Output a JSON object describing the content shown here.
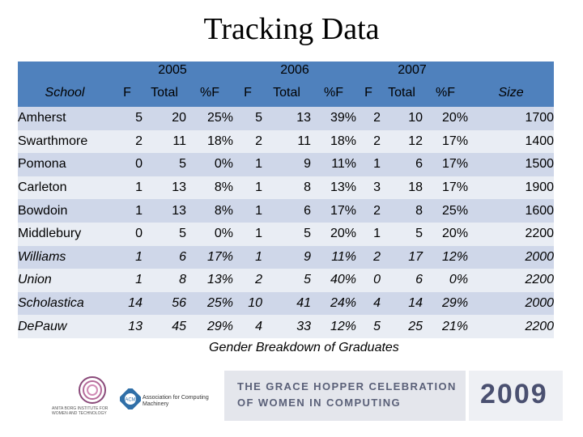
{
  "title": "Tracking Data",
  "table": {
    "years": [
      "2005",
      "2006",
      "2007"
    ],
    "school_label": "School",
    "size_label": "Size",
    "col_labels": [
      "F",
      "Total",
      "%F"
    ],
    "rows": [
      {
        "school": "Amherst",
        "y2005": [
          "5",
          "20",
          "25%"
        ],
        "y2006": [
          "5",
          "13",
          "39%"
        ],
        "y2007": [
          "2",
          "10",
          "20%"
        ],
        "size": "1700"
      },
      {
        "school": "Swarthmore",
        "y2005": [
          "2",
          "11",
          "18%"
        ],
        "y2006": [
          "2",
          "11",
          "18%"
        ],
        "y2007": [
          "2",
          "12",
          "17%"
        ],
        "size": "1400"
      },
      {
        "school": "Pomona",
        "y2005": [
          "0",
          "5",
          "0%"
        ],
        "y2006": [
          "1",
          "9",
          "11%"
        ],
        "y2007": [
          "1",
          "6",
          "17%"
        ],
        "size": "1500"
      },
      {
        "school": "Carleton",
        "y2005": [
          "1",
          "13",
          "8%"
        ],
        "y2006": [
          "1",
          "8",
          "13%"
        ],
        "y2007": [
          "3",
          "18",
          "17%"
        ],
        "size": "1900"
      },
      {
        "school": "Bowdoin",
        "y2005": [
          "1",
          "13",
          "8%"
        ],
        "y2006": [
          "1",
          "6",
          "17%"
        ],
        "y2007": [
          "2",
          "8",
          "25%"
        ],
        "size": "1600"
      },
      {
        "school": "Middlebury",
        "y2005": [
          "0",
          "5",
          "0%"
        ],
        "y2006": [
          "1",
          "5",
          "20%"
        ],
        "y2007": [
          "1",
          "5",
          "20%"
        ],
        "size": "2200"
      },
      {
        "school": "Williams",
        "y2005": [
          "1",
          "6",
          "17%"
        ],
        "y2006": [
          "1",
          "9",
          "11%"
        ],
        "y2007": [
          "2",
          "17",
          "12%"
        ],
        "size": "2000"
      },
      {
        "school": "Union",
        "y2005": [
          "1",
          "8",
          "13%"
        ],
        "y2006": [
          "2",
          "5",
          "40%"
        ],
        "y2007": [
          "0",
          "6",
          "0%"
        ],
        "size": "2200"
      },
      {
        "school": "Scholastica",
        "y2005": [
          "14",
          "56",
          "25%"
        ],
        "y2006": [
          "10",
          "41",
          "24%"
        ],
        "y2007": [
          "4",
          "14",
          "29%"
        ],
        "size": "2000"
      },
      {
        "school": "DePauw",
        "y2005": [
          "13",
          "45",
          "29%"
        ],
        "y2006": [
          "4",
          "33",
          "12%"
        ],
        "y2007": [
          "5",
          "25",
          "21%"
        ],
        "size": "2200"
      }
    ]
  },
  "caption": "Gender Breakdown of Graduates",
  "footer": {
    "ghc_line1": "THE GRACE HOPPER CELEBRATION",
    "ghc_line2": "OF WOMEN IN COMPUTING",
    "year": "2009",
    "acm_text": "Association for Computing Machinery",
    "acm_badge": "ACM",
    "institute_text": "ANITA BORG INSTITUTE FOR WOMEN AND TECHNOLOGY"
  },
  "colors": {
    "header_blue": "#4f81bd",
    "row_dark": "#cfd7e9",
    "row_light": "#e9edf4"
  }
}
